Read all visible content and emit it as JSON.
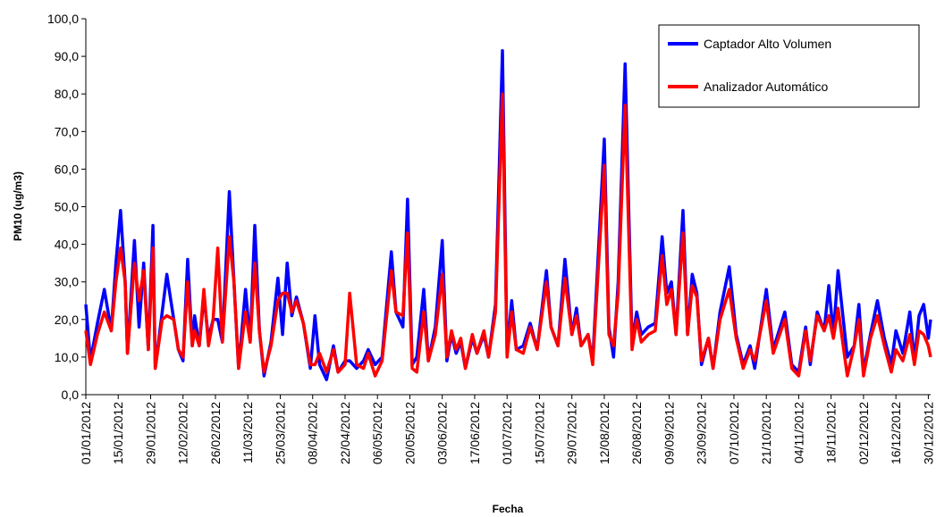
{
  "chart_data": {
    "type": "line",
    "x_label": "Fecha",
    "y_label": "PM10 (ug/m3)",
    "xlim": [
      "01/01/2012",
      "31/12/2012"
    ],
    "xticks": [
      "01/01/2012",
      "15/01/2012",
      "29/01/2012",
      "12/02/2012",
      "26/02/2012",
      "11/03/2012",
      "25/03/2012",
      "08/04/2012",
      "22/04/2012",
      "06/05/2012",
      "20/05/2012",
      "03/06/2012",
      "17/06/2012",
      "01/07/2012",
      "15/07/2012",
      "29/07/2012",
      "12/08/2012",
      "26/08/2012",
      "09/09/2012",
      "23/09/2012",
      "07/10/2012",
      "21/10/2012",
      "04/11/2012",
      "18/11/2012",
      "02/12/2012",
      "16/12/2012",
      "30/12/2012"
    ],
    "ylim": [
      0,
      100
    ],
    "yticks": [
      {
        "value": 0,
        "label": "0,0"
      },
      {
        "value": 10,
        "label": "10,0"
      },
      {
        "value": 20,
        "label": "20,0"
      },
      {
        "value": 30,
        "label": "30,0"
      },
      {
        "value": 40,
        "label": "40,0"
      },
      {
        "value": 50,
        "label": "50,0"
      },
      {
        "value": 60,
        "label": "60,0"
      },
      {
        "value": 70,
        "label": "70,0"
      },
      {
        "value": 80,
        "label": "80,0"
      },
      {
        "value": 90,
        "label": "90,0"
      },
      {
        "value": 100,
        "label": "100,0"
      }
    ],
    "grid": false,
    "legend": "upper right",
    "x": [
      "01/01/2012",
      "03/01/2012",
      "06/01/2012",
      "09/01/2012",
      "12/01/2012",
      "14/01/2012",
      "16/01/2012",
      "18/01/2012",
      "19/01/2012",
      "22/01/2012",
      "24/01/2012",
      "26/01/2012",
      "28/01/2012",
      "30/01/2012",
      "31/01/2012",
      "03/02/2012",
      "05/02/2012",
      "08/02/2012",
      "10/02/2012",
      "12/02/2012",
      "14/02/2012",
      "16/02/2012",
      "17/02/2012",
      "19/02/2012",
      "21/02/2012",
      "23/02/2012",
      "25/02/2012",
      "27/02/2012",
      "29/02/2012",
      "03/03/2012",
      "05/03/2012",
      "07/03/2012",
      "10/03/2012",
      "12/03/2012",
      "14/03/2012",
      "16/03/2012",
      "18/03/2012",
      "21/03/2012",
      "24/03/2012",
      "26/03/2012",
      "28/03/2012",
      "30/03/2012",
      "01/04/2012",
      "04/04/2012",
      "07/04/2012",
      "09/04/2012",
      "11/04/2012",
      "14/04/2012",
      "17/04/2012",
      "19/04/2012",
      "22/04/2012",
      "24/04/2012",
      "27/04/2012",
      "30/04/2012",
      "02/05/2012",
      "05/05/2012",
      "08/05/2012",
      "12/05/2012",
      "14/05/2012",
      "17/05/2012",
      "19/05/2012",
      "21/05/2012",
      "23/05/2012",
      "26/05/2012",
      "28/05/2012",
      "31/05/2012",
      "03/06/2012",
      "05/06/2012",
      "07/06/2012",
      "09/06/2012",
      "11/06/2012",
      "13/06/2012",
      "16/06/2012",
      "18/06/2012",
      "21/06/2012",
      "23/06/2012",
      "26/06/2012",
      "29/06/2012",
      "01/07/2012",
      "03/07/2012",
      "05/07/2012",
      "08/07/2012",
      "11/07/2012",
      "14/07/2012",
      "18/07/2012",
      "20/07/2012",
      "23/07/2012",
      "26/07/2012",
      "29/07/2012",
      "31/07/2012",
      "02/08/2012",
      "05/08/2012",
      "07/08/2012",
      "12/08/2012",
      "14/08/2012",
      "16/08/2012",
      "18/08/2012",
      "21/08/2012",
      "24/08/2012",
      "26/08/2012",
      "28/08/2012",
      "31/08/2012",
      "03/09/2012",
      "06/09/2012",
      "08/09/2012",
      "10/09/2012",
      "12/09/2012",
      "15/09/2012",
      "17/09/2012",
      "19/09/2012",
      "21/09/2012",
      "23/09/2012",
      "26/09/2012",
      "28/09/2012",
      "01/10/2012",
      "05/10/2012",
      "08/10/2012",
      "11/10/2012",
      "14/10/2012",
      "16/10/2012",
      "21/10/2012",
      "24/10/2012",
      "29/10/2012",
      "01/11/2012",
      "04/11/2012",
      "07/11/2012",
      "09/11/2012",
      "12/11/2012",
      "15/11/2012",
      "17/11/2012",
      "19/11/2012",
      "21/11/2012",
      "25/11/2012",
      "28/11/2012",
      "30/11/2012",
      "02/12/2012",
      "05/12/2012",
      "08/12/2012",
      "11/12/2012",
      "14/12/2012",
      "16/12/2012",
      "19/12/2012",
      "22/12/2012",
      "24/12/2012",
      "26/12/2012",
      "28/12/2012",
      "30/12/2012",
      "31/12/2012"
    ],
    "series": [
      {
        "name": "Captador Alto Volumen",
        "color": "#0000ff",
        "values": [
          24,
          9,
          19,
          28,
          17,
          35,
          49,
          30,
          11,
          41,
          18,
          35,
          12,
          45,
          7,
          22,
          32,
          20,
          12,
          9,
          36,
          13,
          21,
          13,
          26,
          15,
          20,
          20,
          14,
          54,
          30,
          7,
          28,
          14,
          45,
          17,
          5,
          14,
          31,
          16,
          35,
          21,
          26,
          19,
          7,
          21,
          8,
          4,
          13,
          6,
          9,
          9,
          7,
          9,
          12,
          8,
          10,
          38,
          22,
          18,
          52,
          8,
          10,
          28,
          9,
          18,
          41,
          9,
          16,
          11,
          14,
          7,
          15,
          11,
          16,
          10,
          24,
          91.5,
          11,
          25,
          12,
          13,
          19,
          12,
          33,
          18,
          13,
          36,
          16,
          23,
          13,
          16,
          9,
          68,
          18,
          10,
          30,
          88,
          14,
          22,
          16,
          18,
          19,
          42,
          27,
          30,
          16,
          49,
          16,
          32,
          27,
          8,
          15,
          7,
          22,
          34,
          16,
          8,
          13,
          7,
          28,
          12,
          22,
          8,
          6,
          18,
          8,
          22,
          17,
          29,
          16,
          33,
          10,
          13,
          24,
          6,
          16,
          25,
          15,
          8,
          17,
          11,
          22,
          9,
          21,
          24,
          15,
          20
        ]
      },
      {
        "name": "Analizador Automático",
        "color": "#ff0000",
        "values": [
          17,
          8,
          16,
          22,
          17,
          30,
          39,
          30,
          11,
          35,
          25,
          33,
          12,
          39,
          7,
          20,
          21,
          20,
          12,
          10,
          30,
          13,
          17,
          13,
          28,
          13,
          20,
          39,
          14,
          42,
          30,
          7,
          22,
          14,
          35,
          17,
          6,
          13,
          25,
          27,
          27,
          22,
          25,
          19,
          8,
          8,
          11,
          6,
          12,
          6,
          8,
          27,
          8,
          7,
          11,
          5,
          9,
          33,
          22,
          21,
          43,
          7,
          6,
          22,
          9,
          16,
          32,
          10,
          17,
          12,
          15,
          7,
          16,
          11,
          17,
          10,
          22,
          80,
          10,
          22,
          12,
          11,
          18,
          12,
          30,
          18,
          13,
          31,
          16,
          21,
          13,
          16,
          8,
          61,
          16,
          13,
          27,
          77,
          12,
          20,
          14,
          16,
          17,
          37,
          24,
          28,
          16,
          43,
          16,
          29,
          26,
          9,
          15,
          7,
          20,
          28,
          15,
          7,
          12,
          9,
          25,
          11,
          20,
          7,
          5,
          17,
          9,
          21,
          17,
          21,
          15,
          23,
          5,
          13,
          20,
          5,
          15,
          21,
          13,
          6,
          12,
          9,
          16,
          8,
          17,
          16,
          13,
          10
        ]
      }
    ]
  }
}
